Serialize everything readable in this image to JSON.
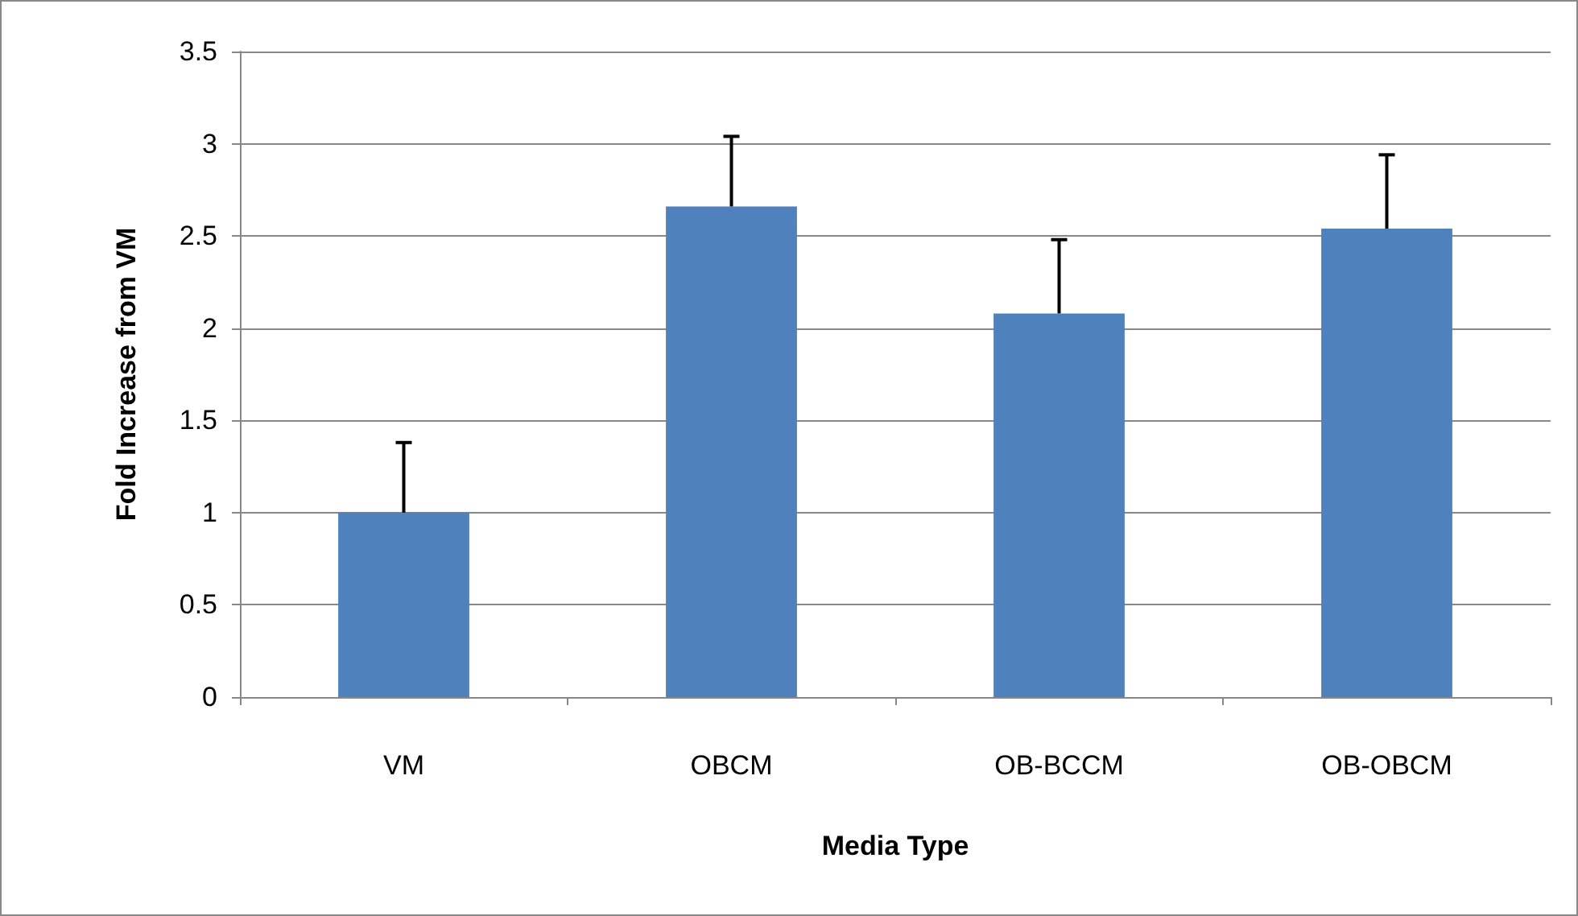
{
  "chart_data": {
    "type": "bar",
    "xlabel": "Media Type",
    "ylabel": "Fold Increase from VM",
    "categories": [
      "VM",
      "OBCM",
      "OB-BCCM",
      "OB-OBCM"
    ],
    "values": [
      1.0,
      2.66,
      2.08,
      2.54
    ],
    "errors": [
      [
        1.0,
        1.38
      ],
      [
        2.66,
        3.04
      ],
      [
        2.08,
        2.48
      ],
      [
        2.54,
        2.94
      ]
    ],
    "color": "#4f81bd",
    "ylim": [
      0,
      3.5
    ],
    "yticks": [
      0,
      0.5,
      1,
      1.5,
      2,
      2.5,
      3,
      3.5
    ],
    "grid": "y"
  }
}
